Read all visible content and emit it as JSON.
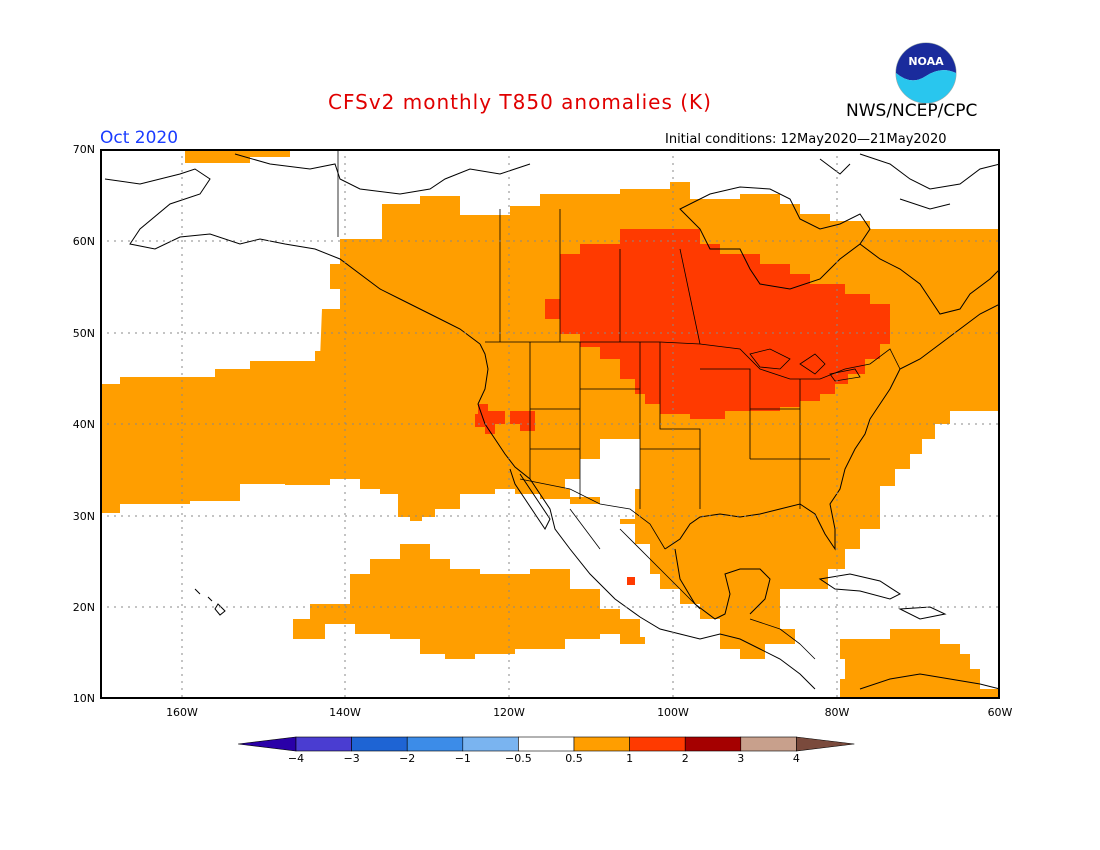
{
  "title": "CFSv2 monthly T850 anomalies (K)",
  "agency": "NWS/NCEP/CPC",
  "logo_text": "NOAA",
  "month": "Oct 2020",
  "initial_conditions": "Initial conditions: 12May2020—21May2020",
  "lat_labels": [
    "70N",
    "60N",
    "50N",
    "40N",
    "30N",
    "20N",
    "10N"
  ],
  "lon_labels": [
    "160W",
    "140W",
    "120W",
    "100W",
    "80W",
    "60W"
  ],
  "colorbar": {
    "ticks": [
      "−4",
      "−3",
      "−2",
      "−1",
      "−0.5",
      "0.5",
      "1",
      "2",
      "3",
      "4"
    ],
    "colors": [
      "#2a00a8",
      "#4a3dd1",
      "#1e64d4",
      "#3c8ce8",
      "#7ab4f0",
      "#ffffff",
      "#ff9e00",
      "#ff3a00",
      "#a50000",
      "#c8a08c",
      "#7a4a3c"
    ]
  },
  "map_colors": {
    "anomaly_0.5_1": "#ff9e00",
    "anomaly_1_2": "#ff3a00",
    "land_outline": "#000000"
  }
}
